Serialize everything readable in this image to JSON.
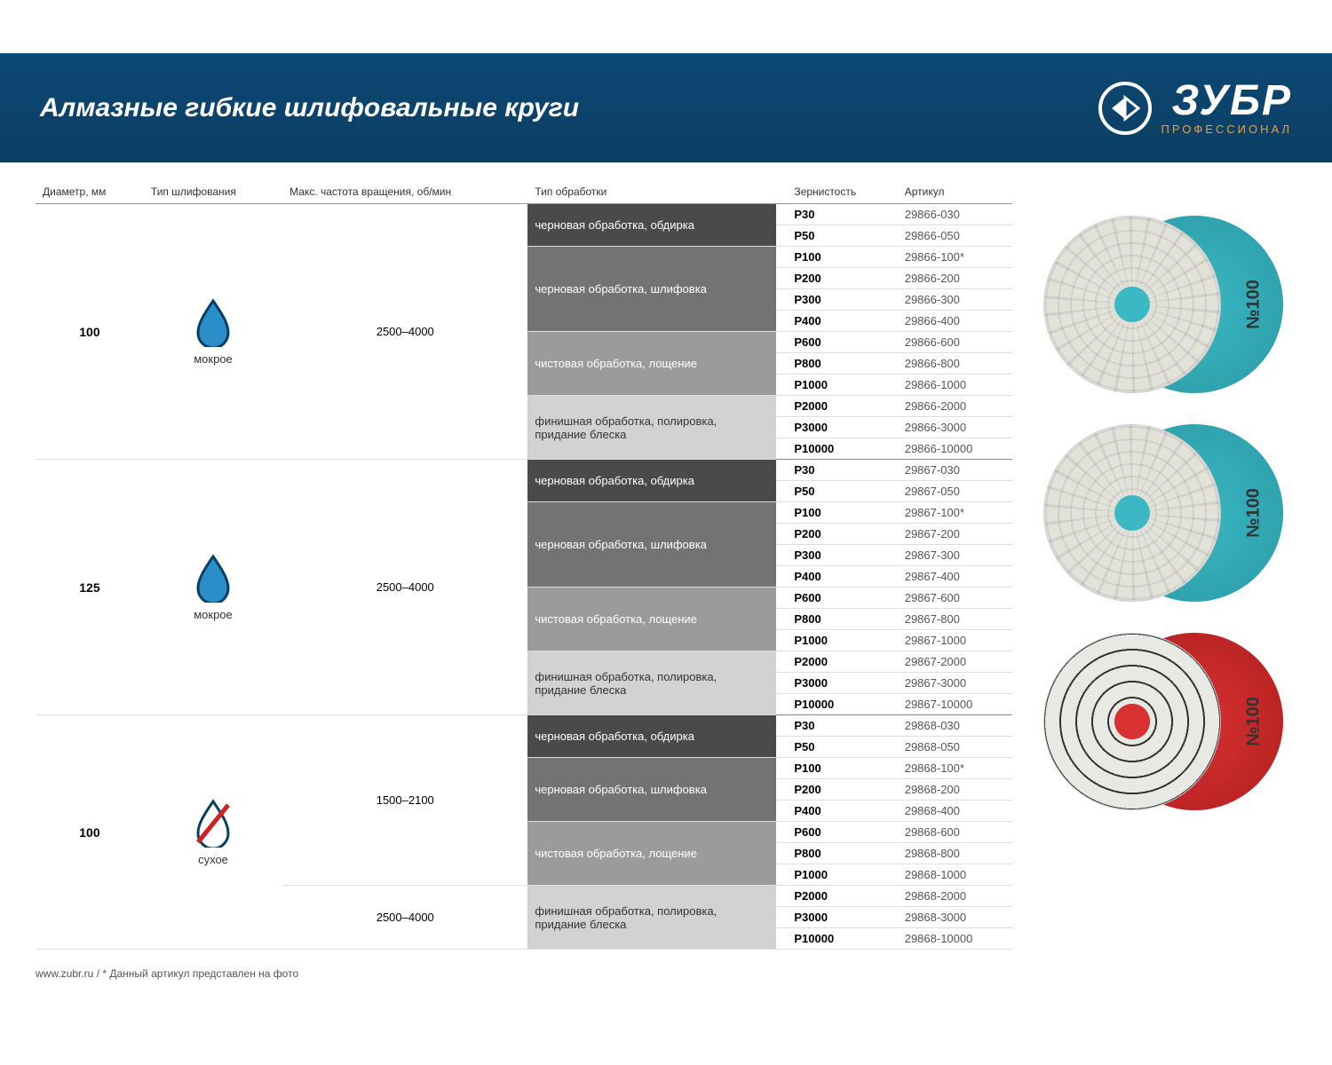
{
  "header": {
    "title": "Алмазные гибкие шлифовальные круги",
    "logo_text": "ЗУБР",
    "logo_sub": "ПРОФЕССИОНАЛ"
  },
  "columns": {
    "diameter": "Диаметр, мм",
    "type": "Тип шлифования",
    "rpm": "Макс. частота вращения, об/мин",
    "treatment": "Тип обработки",
    "grit": "Зернистость",
    "article": "Артикул"
  },
  "type_labels": {
    "wet": "мокрое",
    "dry": "сухое"
  },
  "treatments": {
    "t1": "черновая обработка, обдирка",
    "t2": "черновая обработка, шлифовка",
    "t3": "чистовая обработка, лощение",
    "t4": "финишная обработка, полировка, придание блеска",
    "t4b": "финишная обработка, полировка, придание блеска"
  },
  "groups": [
    {
      "diameter": "100",
      "type": "wet",
      "rpm_blocks": [
        {
          "rpm": "2500–4000",
          "treat_blocks": [
            {
              "treat": "t1",
              "rows": [
                {
                  "grit": "P30",
                  "art": "29866-030"
                },
                {
                  "grit": "P50",
                  "art": "29866-050"
                }
              ]
            },
            {
              "treat": "t2",
              "rows": [
                {
                  "grit": "P100",
                  "art": "29866-100*"
                },
                {
                  "grit": "P200",
                  "art": "29866-200"
                },
                {
                  "grit": "P300",
                  "art": "29866-300"
                },
                {
                  "grit": "P400",
                  "art": "29866-400"
                }
              ]
            },
            {
              "treat": "t3",
              "rows": [
                {
                  "grit": "P600",
                  "art": "29866-600"
                },
                {
                  "grit": "P800",
                  "art": "29866-800"
                },
                {
                  "grit": "P1000",
                  "art": "29866-1000"
                }
              ]
            },
            {
              "treat": "t4",
              "rows": [
                {
                  "grit": "P2000",
                  "art": "29866-2000"
                },
                {
                  "grit": "P3000",
                  "art": "29866-3000"
                },
                {
                  "grit": "P10000",
                  "art": "29866-10000"
                }
              ]
            }
          ]
        }
      ]
    },
    {
      "diameter": "125",
      "type": "wet",
      "rpm_blocks": [
        {
          "rpm": "2500–4000",
          "treat_blocks": [
            {
              "treat": "t1",
              "rows": [
                {
                  "grit": "P30",
                  "art": "29867-030"
                },
                {
                  "grit": "P50",
                  "art": "29867-050"
                }
              ]
            },
            {
              "treat": "t2",
              "rows": [
                {
                  "grit": "P100",
                  "art": "29867-100*"
                },
                {
                  "grit": "P200",
                  "art": "29867-200"
                },
                {
                  "grit": "P300",
                  "art": "29867-300"
                },
                {
                  "grit": "P400",
                  "art": "29867-400"
                }
              ]
            },
            {
              "treat": "t3",
              "rows": [
                {
                  "grit": "P600",
                  "art": "29867-600"
                },
                {
                  "grit": "P800",
                  "art": "29867-800"
                },
                {
                  "grit": "P1000",
                  "art": "29867-1000"
                }
              ]
            },
            {
              "treat": "t4",
              "rows": [
                {
                  "grit": "P2000",
                  "art": "29867-2000"
                },
                {
                  "grit": "P3000",
                  "art": "29867-3000"
                },
                {
                  "grit": "P10000",
                  "art": "29867-10000"
                }
              ]
            }
          ]
        }
      ]
    },
    {
      "diameter": "100",
      "type": "dry",
      "rpm_blocks": [
        {
          "rpm": "1500–2100",
          "treat_blocks": [
            {
              "treat": "t1",
              "rows": [
                {
                  "grit": "P30",
                  "art": "29868-030"
                },
                {
                  "grit": "P50",
                  "art": "29868-050"
                }
              ]
            },
            {
              "treat": "t2",
              "rows": [
                {
                  "grit": "P100",
                  "art": "29868-100*"
                },
                {
                  "grit": "P200",
                  "art": "29868-200"
                },
                {
                  "grit": "P400",
                  "art": "29868-400"
                }
              ]
            },
            {
              "treat": "t3",
              "rows": [
                {
                  "grit": "P600",
                  "art": "29868-600"
                },
                {
                  "grit": "P800",
                  "art": "29868-800"
                },
                {
                  "grit": "P1000",
                  "art": "29868-1000"
                }
              ]
            }
          ]
        },
        {
          "rpm": "2500–4000",
          "treat_blocks": [
            {
              "treat": "t4b",
              "rows": [
                {
                  "grit": "P2000",
                  "art": "29868-2000"
                },
                {
                  "grit": "P3000",
                  "art": "29868-3000"
                },
                {
                  "grit": "P10000",
                  "art": "29868-10000"
                }
              ]
            }
          ]
        }
      ]
    }
  ],
  "disc_label": "№100",
  "footer": "www.zubr.ru   /  * Данный артикул представлен на фото",
  "colors": {
    "header_bg": "#0d4975",
    "treat1": "#4a4a4a",
    "treat2": "#737373",
    "treat3": "#9b9b9b",
    "treat4": "#d2d2d2",
    "teal": "#3bb8c4",
    "red": "#d93030",
    "logo_sub": "#f0a030"
  }
}
